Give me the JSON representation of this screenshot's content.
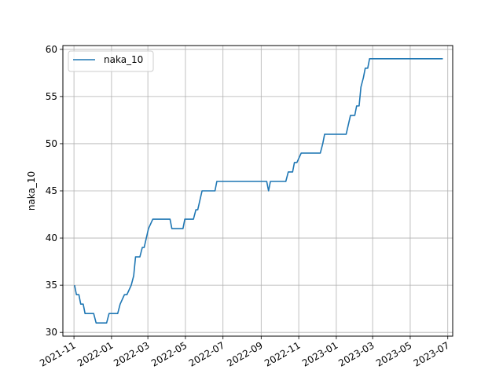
{
  "chart_data": {
    "type": "line",
    "title": "",
    "xlabel": "",
    "ylabel": "naka_10",
    "xlim": [
      "2021-10-14",
      "2023-07-09"
    ],
    "ylim": [
      29.6,
      60.4
    ],
    "grid": true,
    "legend_position": "top-left",
    "x_ticks": [
      "2021-11",
      "2022-01",
      "2022-03",
      "2022-05",
      "2022-07",
      "2022-09",
      "2022-11",
      "2023-01",
      "2023-03",
      "2023-05",
      "2023-07"
    ],
    "x_tick_dates": [
      "2021-11-01",
      "2022-01-01",
      "2022-03-01",
      "2022-05-01",
      "2022-07-01",
      "2022-09-01",
      "2022-11-01",
      "2023-01-01",
      "2023-03-01",
      "2023-05-01",
      "2023-07-01"
    ],
    "y_ticks": [
      30,
      35,
      40,
      45,
      50,
      55,
      60
    ],
    "series": [
      {
        "name": "naka_10",
        "color": "#1f77b4",
        "points": [
          [
            "2021-11-02",
            35
          ],
          [
            "2021-11-05",
            34
          ],
          [
            "2021-11-09",
            34
          ],
          [
            "2021-11-12",
            33
          ],
          [
            "2021-11-16",
            33
          ],
          [
            "2021-11-19",
            32
          ],
          [
            "2021-11-23",
            32
          ],
          [
            "2021-11-26",
            32
          ],
          [
            "2021-12-03",
            32
          ],
          [
            "2021-12-07",
            31
          ],
          [
            "2021-12-10",
            31
          ],
          [
            "2021-12-17",
            31
          ],
          [
            "2021-12-24",
            31
          ],
          [
            "2021-12-28",
            32
          ],
          [
            "2022-01-04",
            32
          ],
          [
            "2022-01-11",
            32
          ],
          [
            "2022-01-15",
            33
          ],
          [
            "2022-01-22",
            34
          ],
          [
            "2022-01-26",
            34
          ],
          [
            "2022-02-02",
            35
          ],
          [
            "2022-02-06",
            36
          ],
          [
            "2022-02-09",
            38
          ],
          [
            "2022-02-16",
            38
          ],
          [
            "2022-02-20",
            39
          ],
          [
            "2022-02-23",
            39
          ],
          [
            "2022-03-02",
            41
          ],
          [
            "2022-03-09",
            42
          ],
          [
            "2022-03-16",
            42
          ],
          [
            "2022-03-23",
            42
          ],
          [
            "2022-03-30",
            42
          ],
          [
            "2022-04-06",
            42
          ],
          [
            "2022-04-09",
            41
          ],
          [
            "2022-04-16",
            41
          ],
          [
            "2022-04-23",
            41
          ],
          [
            "2022-04-27",
            41
          ],
          [
            "2022-04-30",
            42
          ],
          [
            "2022-05-07",
            42
          ],
          [
            "2022-05-14",
            42
          ],
          [
            "2022-05-18",
            43
          ],
          [
            "2022-05-21",
            43
          ],
          [
            "2022-05-28",
            45
          ],
          [
            "2022-06-04",
            45
          ],
          [
            "2022-06-11",
            45
          ],
          [
            "2022-06-18",
            45
          ],
          [
            "2022-06-21",
            46
          ],
          [
            "2022-06-28",
            46
          ],
          [
            "2022-07-05",
            46
          ],
          [
            "2022-07-12",
            46
          ],
          [
            "2022-07-19",
            46
          ],
          [
            "2022-07-26",
            46
          ],
          [
            "2022-08-02",
            46
          ],
          [
            "2022-08-09",
            46
          ],
          [
            "2022-08-16",
            46
          ],
          [
            "2022-08-23",
            46
          ],
          [
            "2022-08-30",
            46
          ],
          [
            "2022-09-06",
            46
          ],
          [
            "2022-09-10",
            46
          ],
          [
            "2022-09-13",
            45
          ],
          [
            "2022-09-16",
            46
          ],
          [
            "2022-09-20",
            46
          ],
          [
            "2022-09-27",
            46
          ],
          [
            "2022-10-04",
            46
          ],
          [
            "2022-10-11",
            46
          ],
          [
            "2022-10-15",
            47
          ],
          [
            "2022-10-22",
            47
          ],
          [
            "2022-10-25",
            48
          ],
          [
            "2022-10-29",
            48
          ],
          [
            "2022-11-05",
            49
          ],
          [
            "2022-11-12",
            49
          ],
          [
            "2022-11-19",
            49
          ],
          [
            "2022-11-26",
            49
          ],
          [
            "2022-12-03",
            49
          ],
          [
            "2022-12-06",
            49
          ],
          [
            "2022-12-10",
            50
          ],
          [
            "2022-12-13",
            51
          ],
          [
            "2022-12-20",
            51
          ],
          [
            "2022-12-27",
            51
          ],
          [
            "2023-01-03",
            51
          ],
          [
            "2023-01-10",
            51
          ],
          [
            "2023-01-17",
            51
          ],
          [
            "2023-01-24",
            53
          ],
          [
            "2023-01-31",
            53
          ],
          [
            "2023-02-03",
            54
          ],
          [
            "2023-02-07",
            54
          ],
          [
            "2023-02-10",
            56
          ],
          [
            "2023-02-14",
            57
          ],
          [
            "2023-02-17",
            58
          ],
          [
            "2023-02-21",
            58
          ],
          [
            "2023-02-24",
            59
          ],
          [
            "2023-03-03",
            59
          ],
          [
            "2023-03-10",
            59
          ],
          [
            "2023-03-17",
            59
          ],
          [
            "2023-03-24",
            59
          ],
          [
            "2023-03-31",
            59
          ],
          [
            "2023-04-07",
            59
          ],
          [
            "2023-04-14",
            59
          ],
          [
            "2023-04-21",
            59
          ],
          [
            "2023-04-28",
            59
          ],
          [
            "2023-05-05",
            59
          ],
          [
            "2023-05-12",
            59
          ],
          [
            "2023-05-19",
            59
          ],
          [
            "2023-05-26",
            59
          ],
          [
            "2023-06-02",
            59
          ],
          [
            "2023-06-09",
            59
          ],
          [
            "2023-06-16",
            59
          ],
          [
            "2023-06-23",
            59
          ]
        ]
      }
    ]
  }
}
